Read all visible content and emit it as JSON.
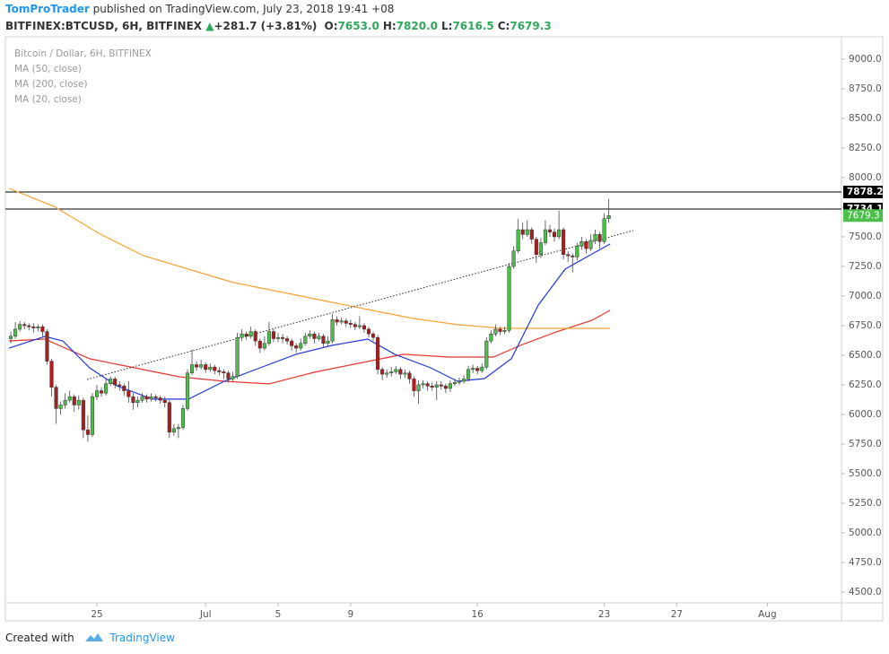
{
  "header": {
    "author": "TomProTrader",
    "published": "published on TradingView.com, July 23, 2018 19:41 +08",
    "symbol": "BITFINEX:BTCUSD, 6H, BITFINEX",
    "change": "+281.7 (+3.81%)",
    "ohlc": [
      {
        "label": "O:",
        "value": "7653.0"
      },
      {
        "label": "H:",
        "value": "7820.0"
      },
      {
        "label": "L:",
        "value": "7616.5"
      },
      {
        "label": "C:",
        "value": "7679.3"
      }
    ]
  },
  "chart_data": {
    "type": "candlestick",
    "title": "Bitcoin / Dollar, 6H, BITFINEX",
    "up_color": "#4cbf4a",
    "down_color": "#b01c1c",
    "x": [
      20.25,
      20.5,
      20.75,
      21,
      21.25,
      21.5,
      21.75,
      22,
      22.25,
      22.5,
      22.75,
      23,
      23.25,
      23.5,
      23.75,
      24,
      24.25,
      24.5,
      24.75,
      25,
      25.25,
      25.5,
      25.75,
      26,
      26.25,
      26.5,
      26.75,
      27,
      27.25,
      27.5,
      27.75,
      28,
      28.25,
      28.5,
      28.75,
      29,
      29.25,
      29.5,
      29.75,
      30,
      30.25,
      30.5,
      30.75,
      31,
      31.25,
      31.5,
      31.75,
      32,
      32.25,
      32.5,
      32.75,
      33,
      33.25,
      33.5,
      33.75,
      34,
      34.25,
      34.5,
      34.75,
      35,
      35.25,
      35.5,
      35.75,
      36,
      36.25,
      36.5,
      36.75,
      37,
      37.25,
      37.5,
      37.75,
      38,
      38.25,
      38.5,
      38.75,
      39,
      39.25,
      39.5,
      39.75,
      40,
      40.25,
      40.5,
      40.75,
      41,
      41.25,
      41.5,
      41.75,
      42,
      42.25,
      42.5,
      42.75,
      43,
      43.25,
      43.5,
      43.75,
      44,
      44.25,
      44.5,
      44.75,
      45,
      45.25,
      45.5,
      45.75,
      46,
      46.25,
      46.5,
      46.75,
      47,
      47.25,
      47.5,
      47.75,
      48,
      48.25,
      48.5,
      48.75,
      49,
      49.25,
      49.5,
      49.75,
      50,
      50.25,
      50.5,
      50.75,
      51,
      51.25,
      51.5,
      51.75,
      52,
      52.25,
      52.5,
      52.75,
      53,
      53.25
    ],
    "open": [
      6640,
      6660,
      6720,
      6760,
      6750,
      6740,
      6730,
      6740,
      6700,
      6450,
      6230,
      6050,
      6080,
      6120,
      6150,
      6080,
      6120,
      5870,
      5830,
      6150,
      6200,
      6180,
      6260,
      6300,
      6250,
      6240,
      6200,
      6150,
      6100,
      6120,
      6150,
      6130,
      6150,
      6140,
      6120,
      6100,
      5850,
      5880,
      5890,
      6050,
      6350,
      6420,
      6400,
      6420,
      6380,
      6400,
      6370,
      6360,
      6350,
      6300,
      6320,
      6650,
      6680,
      6660,
      6700,
      6620,
      6560,
      6600,
      6700,
      6640,
      6650,
      6640,
      6620,
      6580,
      6560,
      6600,
      6660,
      6680,
      6640,
      6660,
      6600,
      6620,
      6800,
      6780,
      6790,
      6770,
      6760,
      6740,
      6750,
      6720,
      6680,
      6650,
      6380,
      6340,
      6350,
      6360,
      6380,
      6340,
      6350,
      6300,
      6200,
      6250,
      6260,
      6240,
      6230,
      6250,
      6240,
      6220,
      6260,
      6270,
      6280,
      6300,
      6380,
      6390,
      6370,
      6400,
      6620,
      6680,
      6720,
      6700,
      6710,
      7250,
      7380,
      7560,
      7520,
      7560,
      7480,
      7350,
      7450,
      7560,
      7540,
      7500,
      7560,
      7350,
      7340,
      7330,
      7420,
      7460,
      7400,
      7470,
      7520,
      7460,
      7653
    ],
    "high": [
      6700,
      6780,
      6790,
      6780,
      6770,
      6770,
      6760,
      6760,
      6720,
      6470,
      6250,
      6110,
      6180,
      6200,
      6170,
      6160,
      6140,
      5990,
      6180,
      6250,
      6230,
      6300,
      6320,
      6320,
      6280,
      6260,
      6280,
      6180,
      6150,
      6180,
      6170,
      6180,
      6170,
      6160,
      6150,
      6120,
      5920,
      5920,
      6080,
      6380,
      6550,
      6450,
      6460,
      6440,
      6430,
      6420,
      6400,
      6380,
      6370,
      6360,
      6690,
      6720,
      6700,
      6740,
      6720,
      6640,
      6660,
      6780,
      6720,
      6690,
      6680,
      6660,
      6640,
      6600,
      6640,
      6690,
      6710,
      6700,
      6690,
      6680,
      6660,
      6850,
      6830,
      6820,
      6810,
      6800,
      6780,
      6830,
      6770,
      6740,
      6700,
      6670,
      6400,
      6380,
      6400,
      6410,
      6400,
      6380,
      6370,
      6320,
      6290,
      6290,
      6280,
      6270,
      6280,
      6280,
      6260,
      6290,
      6300,
      6310,
      6330,
      6410,
      6420,
      6410,
      6430,
      6650,
      6710,
      6760,
      6740,
      6740,
      7280,
      7420,
      7650,
      7620,
      7640,
      7580,
      7500,
      7490,
      7640,
      7600,
      7570,
      7720,
      7580,
      7380,
      7360,
      7450,
      7500,
      7480,
      7520,
      7560,
      7540,
      7700,
      7820
    ],
    "low": [
      6600,
      6640,
      6700,
      6720,
      6710,
      6690,
      6700,
      6660,
      6420,
      6150,
      5920,
      6000,
      6050,
      6100,
      6020,
      6040,
      5800,
      5770,
      5810,
      6120,
      6150,
      6160,
      6240,
      6220,
      6200,
      6160,
      6100,
      6040,
      6060,
      6100,
      6100,
      6110,
      6110,
      6090,
      6060,
      5800,
      5820,
      5800,
      5870,
      6030,
      6330,
      6370,
      6380,
      6350,
      6360,
      6340,
      6330,
      6300,
      6270,
      6280,
      6300,
      6620,
      6630,
      6640,
      6580,
      6520,
      6540,
      6580,
      6610,
      6610,
      6600,
      6590,
      6540,
      6520,
      6540,
      6580,
      6640,
      6600,
      6620,
      6570,
      6580,
      6600,
      6750,
      6760,
      6740,
      6730,
      6710,
      6720,
      6690,
      6650,
      6620,
      6340,
      6290,
      6310,
      6320,
      6340,
      6300,
      6310,
      6260,
      6150,
      6090,
      6220,
      6200,
      6200,
      6120,
      6210,
      6180,
      6190,
      6240,
      6250,
      6260,
      6280,
      6350,
      6340,
      6350,
      6380,
      6600,
      6660,
      6670,
      6680,
      6690,
      7230,
      7360,
      7480,
      7500,
      7440,
      7280,
      7320,
      7430,
      7500,
      7460,
      7480,
      7310,
      7290,
      7200,
      7300,
      7390,
      7360,
      7380,
      7440,
      7400,
      7440,
      7616.5
    ],
    "close": [
      6660,
      6720,
      6760,
      6750,
      6740,
      6730,
      6740,
      6700,
      6450,
      6230,
      6050,
      6080,
      6120,
      6150,
      6080,
      6120,
      5870,
      5830,
      6150,
      6200,
      6180,
      6260,
      6300,
      6250,
      6240,
      6200,
      6150,
      6100,
      6120,
      6150,
      6130,
      6150,
      6140,
      6120,
      6100,
      5850,
      5880,
      5890,
      6050,
      6350,
      6420,
      6400,
      6420,
      6380,
      6400,
      6370,
      6360,
      6350,
      6300,
      6320,
      6650,
      6680,
      6660,
      6700,
      6620,
      6560,
      6600,
      6700,
      6640,
      6650,
      6640,
      6620,
      6580,
      6560,
      6600,
      6660,
      6680,
      6640,
      6660,
      6600,
      6620,
      6800,
      6780,
      6790,
      6770,
      6760,
      6740,
      6750,
      6720,
      6680,
      6650,
      6380,
      6340,
      6350,
      6360,
      6380,
      6340,
      6350,
      6300,
      6200,
      6250,
      6260,
      6240,
      6230,
      6250,
      6240,
      6220,
      6260,
      6270,
      6280,
      6300,
      6380,
      6390,
      6370,
      6400,
      6620,
      6680,
      6720,
      6700,
      6710,
      7250,
      7380,
      7560,
      7520,
      7560,
      7480,
      7350,
      7450,
      7560,
      7540,
      7500,
      7560,
      7350,
      7340,
      7330,
      7420,
      7460,
      7400,
      7470,
      7520,
      7460,
      7653,
      7679.3
    ],
    "series": [
      {
        "name": "MA (50, close)",
        "color": "#e8352f",
        "x": [
          20.15,
          22.13,
          24.6,
          27.08,
          29.55,
          32.03,
          34.5,
          36.98,
          39.46,
          41.93,
          44.41,
          46.88,
          48.37,
          50.35,
          52.33,
          53.32
        ],
        "values": [
          6621,
          6636,
          6470,
          6394,
          6318,
          6280,
          6258,
          6356,
          6432,
          6508,
          6485,
          6485,
          6583,
          6697,
          6795,
          6879
        ]
      },
      {
        "name": "MA (200, close)",
        "color": "#f7a234",
        "x": [
          20.15,
          22.62,
          25.1,
          27.57,
          30.05,
          32.52,
          35.0,
          37.48,
          39.95,
          42.43,
          44.9,
          47.38,
          49.36,
          53.32
        ],
        "values": [
          7909,
          7758,
          7530,
          7341,
          7227,
          7114,
          7038,
          6962,
          6886,
          6811,
          6758,
          6727,
          6727,
          6727
        ]
      },
      {
        "name": "MA (20, close)",
        "color": "#2236d9",
        "x": [
          20.15,
          22.13,
          23.12,
          24.6,
          26.09,
          28.07,
          30.05,
          32.03,
          34.01,
          35.99,
          37.97,
          39.95,
          41.44,
          43.42,
          44.9,
          46.39,
          47.87,
          49.36,
          50.84,
          52.33,
          53.32
        ],
        "values": [
          6560,
          6659,
          6621,
          6394,
          6242,
          6129,
          6129,
          6280,
          6394,
          6508,
          6583,
          6636,
          6508,
          6394,
          6280,
          6303,
          6470,
          6924,
          7227,
          7356,
          7439
        ]
      }
    ],
    "trendline": {
      "x": [
        24.46,
        54.6
      ],
      "y": [
        6295,
        7553
      ]
    },
    "hlines": [
      7878.2,
      7734.1
    ],
    "last_price": 7679.3,
    "xlim": [
      19.95,
      66.09
    ],
    "xticks": [
      {
        "value": 25,
        "label": "25"
      },
      {
        "value": 31,
        "label": "Jul"
      },
      {
        "value": 35,
        "label": "5"
      },
      {
        "value": 39,
        "label": "9"
      },
      {
        "value": 46,
        "label": "16"
      },
      {
        "value": 53,
        "label": "23"
      },
      {
        "value": 57,
        "label": "27"
      },
      {
        "value": 62,
        "label": "Aug"
      }
    ],
    "ylim": [
      4409,
      9189
    ],
    "yticks": [
      {
        "value": 4500,
        "label": "4500.0"
      },
      {
        "value": 4750,
        "label": "4750.0"
      },
      {
        "value": 5000,
        "label": "5000.0"
      },
      {
        "value": 5250,
        "label": "5250.0"
      },
      {
        "value": 5500,
        "label": "5500.0"
      },
      {
        "value": 5750,
        "label": "5750.0"
      },
      {
        "value": 6000,
        "label": "6000.0"
      },
      {
        "value": 6250,
        "label": "6250.0"
      },
      {
        "value": 6500,
        "label": "6500.0"
      },
      {
        "value": 6750,
        "label": "6750.0"
      },
      {
        "value": 7000,
        "label": "7000.0"
      },
      {
        "value": 7250,
        "label": "7250.0"
      },
      {
        "value": 7500,
        "label": "7500.0"
      },
      {
        "value": 7750,
        "label": "7750.0"
      },
      {
        "value": 8000,
        "label": "8000.0"
      },
      {
        "value": 8250,
        "label": "8250.0"
      },
      {
        "value": 8500,
        "label": "8500.0"
      },
      {
        "value": 8750,
        "label": "8750.0"
      },
      {
        "value": 9000,
        "label": "9000.0"
      }
    ]
  },
  "footer": {
    "created": "Created with",
    "brand": "TradingView"
  }
}
